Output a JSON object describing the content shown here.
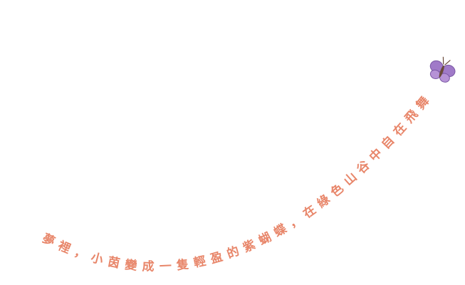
{
  "caption": {
    "text": "夢裡，小茵變成一隻輕盈的紫蝴蝶，在綠色山谷中自在飛舞"
  }
}
